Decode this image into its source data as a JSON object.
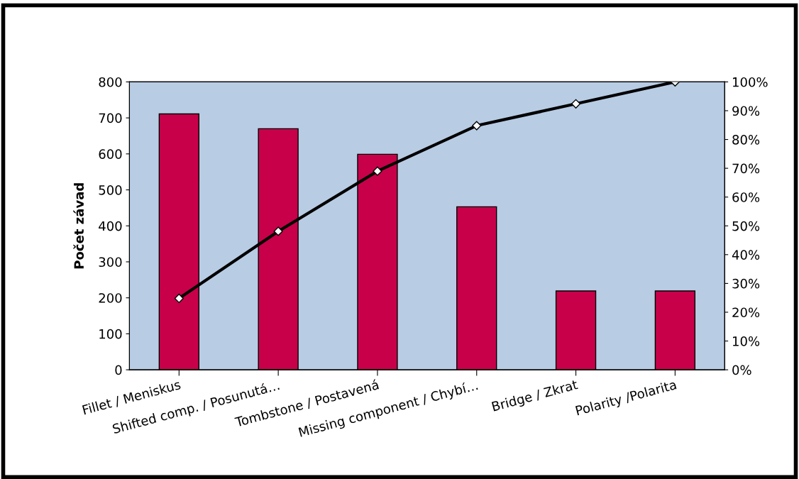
{
  "chart_data": {
    "type": "bar",
    "ylabel": "Počet závad",
    "categories": [
      "Fillet / Meniskus",
      "Shifted comp. / Posunutá…",
      "Tombstone / Postavená",
      "Missing component / Chybí…",
      "Bridge / Zkrat",
      "Polarity /Polarita"
    ],
    "series": [
      {
        "color": "#c8004a",
        "values": [
          711,
          670,
          599,
          453,
          219,
          219
        ]
      },
      {
        "type": "line",
        "axis": "y2",
        "color": "#000000",
        "marker": "diamond",
        "values": [
          24.8,
          48.1,
          69.0,
          84.8,
          92.4,
          100
        ]
      }
    ],
    "ylim": [
      0,
      800
    ],
    "yticks": [
      0,
      100,
      200,
      300,
      400,
      500,
      600,
      700,
      800
    ],
    "y2lim": [
      0,
      100
    ],
    "y2ticks": [
      {
        "value": 0,
        "label": "0%"
      },
      {
        "value": 10,
        "label": "10%"
      },
      {
        "value": 20,
        "label": "20%"
      },
      {
        "value": 30,
        "label": "30%"
      },
      {
        "value": 40,
        "label": "40%"
      },
      {
        "value": 50,
        "label": "50%"
      },
      {
        "value": 60,
        "label": "60%"
      },
      {
        "value": 70,
        "label": "70%"
      },
      {
        "value": 80,
        "label": "80%"
      },
      {
        "value": 90,
        "label": "90%"
      },
      {
        "value": 100,
        "label": "100%"
      }
    ],
    "grid": false,
    "legend": false
  }
}
